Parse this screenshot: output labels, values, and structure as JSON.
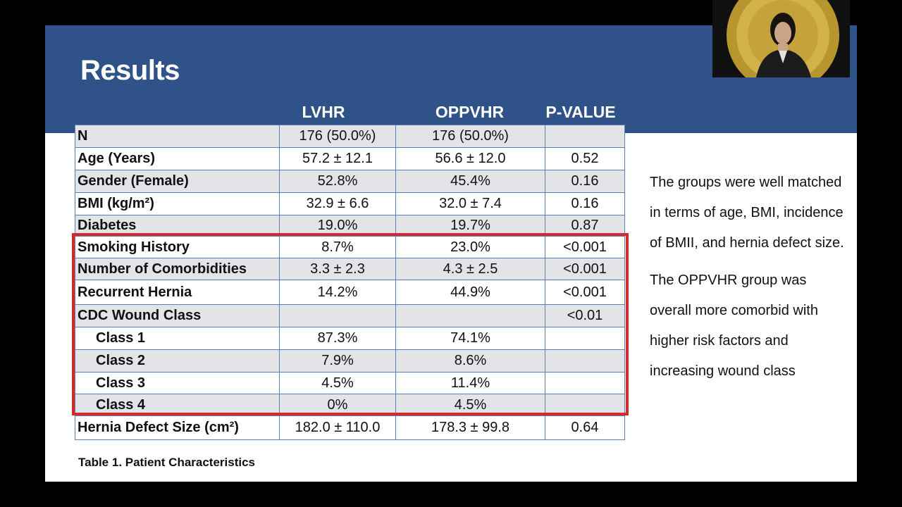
{
  "slide": {
    "title": "Results",
    "columns": [
      "LVHR",
      "OPPVHR",
      "P-VALUE"
    ],
    "rows": [
      {
        "label": "N",
        "lvhr": "176 (50.0%)",
        "oppvhr": "176 (50.0%)",
        "p": "",
        "indent": false,
        "shade": true
      },
      {
        "label": "Age (Years)",
        "lvhr": "57.2 ± 12.1",
        "oppvhr": "56.6 ± 12.0",
        "p": "0.52",
        "indent": false,
        "shade": false
      },
      {
        "label": "Gender (Female)",
        "lvhr": "52.8%",
        "oppvhr": "45.4%",
        "p": "0.16",
        "indent": false,
        "shade": true
      },
      {
        "label": "BMI (kg/m²)",
        "lvhr": "32.9 ± 6.6",
        "oppvhr": "32.0 ± 7.4",
        "p": "0.16",
        "indent": false,
        "shade": false
      },
      {
        "label": "Diabetes",
        "lvhr": "19.0%",
        "oppvhr": "19.7%",
        "p": "0.87",
        "indent": false,
        "shade": true
      },
      {
        "label": "Smoking History",
        "lvhr": "8.7%",
        "oppvhr": "23.0%",
        "p": "<0.001",
        "indent": false,
        "shade": false
      },
      {
        "label": "Number of Comorbidities",
        "lvhr": "3.3 ± 2.3",
        "oppvhr": "4.3 ± 2.5",
        "p": "<0.001",
        "indent": false,
        "shade": true
      },
      {
        "label": "Recurrent Hernia",
        "lvhr": "14.2%",
        "oppvhr": "44.9%",
        "p": "<0.001",
        "indent": false,
        "shade": false
      },
      {
        "label": "CDC Wound Class",
        "lvhr": "",
        "oppvhr": "",
        "p": "<0.01",
        "indent": false,
        "shade": true
      },
      {
        "label": "Class 1",
        "lvhr": "87.3%",
        "oppvhr": "74.1%",
        "p": "",
        "indent": true,
        "shade": false
      },
      {
        "label": "Class 2",
        "lvhr": "7.9%",
        "oppvhr": "8.6%",
        "p": "",
        "indent": true,
        "shade": true
      },
      {
        "label": "Class 3",
        "lvhr": "4.5%",
        "oppvhr": "11.4%",
        "p": "",
        "indent": true,
        "shade": false
      },
      {
        "label": "Class 4",
        "lvhr": "0%",
        "oppvhr": "4.5%",
        "p": "",
        "indent": true,
        "shade": true
      },
      {
        "label": "Hernia Defect Size (cm²)",
        "lvhr": "182.0 ± 110.0",
        "oppvhr": "178.3 ± 99.8",
        "p": "0.64",
        "indent": false,
        "shade": false
      }
    ],
    "caption": "Table 1. Patient Characteristics",
    "notes": [
      "The groups were well matched in terms of age, BMI, incidence of BMII, and hernia defect size.",
      "The OPPVHR group was overall more comorbid with higher risk factors and increasing wound class"
    ],
    "colors": {
      "banner": "#2f5388",
      "highlight_box": "#d32b2b",
      "row_shade": "#e3e4e8",
      "cell_border": "#5d7fae"
    }
  },
  "webcam": {
    "icon": "presenter-video-feed"
  }
}
